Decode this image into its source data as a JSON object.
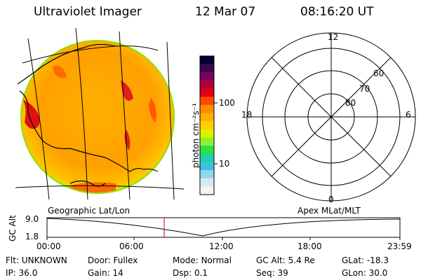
{
  "header": {
    "title": "Ultraviolet Imager",
    "date": "12 Mar 07",
    "time": "08:16:20 UT"
  },
  "colorbar": {
    "unit_label": "photon cm⁻²s⁻¹",
    "ticks": [
      "100",
      "10"
    ],
    "colors": [
      "#000033",
      "#3a0a4a",
      "#7a0060",
      "#b0003a",
      "#e0001a",
      "#ff4a00",
      "#ff8c00",
      "#ffb000",
      "#ffd000",
      "#e0f000",
      "#90f030",
      "#30e040",
      "#20d0b0",
      "#40c0e0",
      "#90d8f0",
      "#d8e8f0",
      "#f4f4f4"
    ]
  },
  "polar_plot": {
    "hour_labels": {
      "top": "12",
      "left": "18",
      "right": "6",
      "bottom": "0"
    },
    "lat_labels": [
      "60",
      "70",
      "80"
    ]
  },
  "map_labels": {
    "left": "Geographic Lat/Lon",
    "right": "Apex MLat/MLT"
  },
  "timeline": {
    "ylabel": "GC Alt",
    "y_ticks": [
      "9.0",
      "1.8"
    ],
    "x_ticks": [
      "00:00",
      "06:00",
      "12:00",
      "18:00",
      "23:59"
    ],
    "current_time_color": "#cc0000"
  },
  "footer": {
    "row1": [
      {
        "label": "Flt:",
        "value": "UNKNOWN"
      },
      {
        "label": "Door:",
        "value": "Fullex"
      },
      {
        "label": "Mode:",
        "value": "Normal"
      },
      {
        "label": "GC Alt:",
        "value": "5.4 Re"
      },
      {
        "label": "GLat:",
        "value": "-18.3"
      }
    ],
    "row2": [
      {
        "label": "IP:",
        "value": "36.0"
      },
      {
        "label": "Gain:",
        "value": "14"
      },
      {
        "label": "Dsp:",
        "value": "0.1"
      },
      {
        "label": "Seq:",
        "value": "39"
      },
      {
        "label": "GLon:",
        "value": "30.0"
      }
    ]
  }
}
